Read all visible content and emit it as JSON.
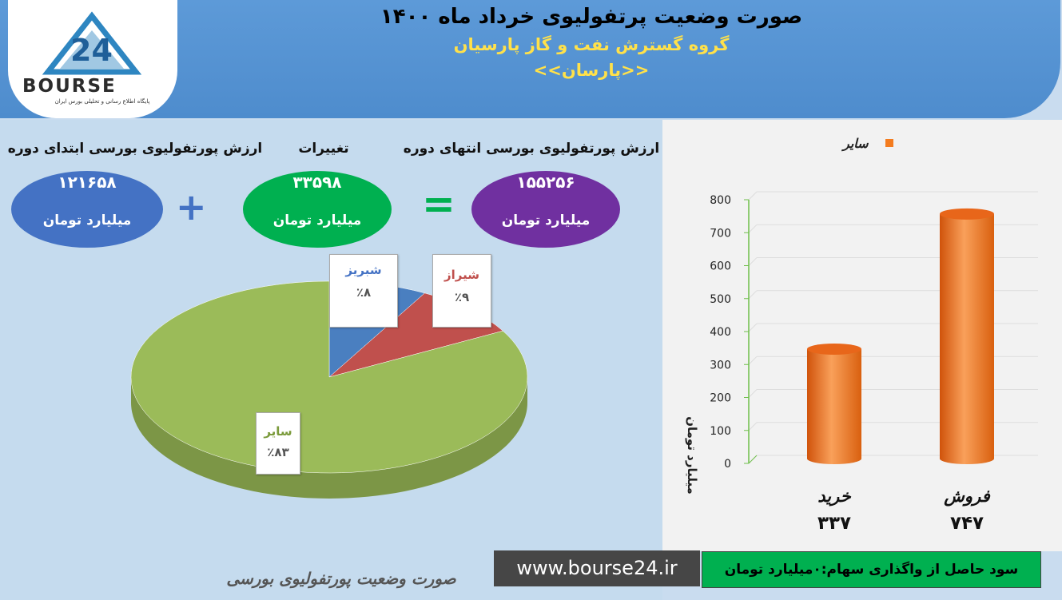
{
  "header": {
    "title": "صورت وضعیت پرتفولیوی خرداد ماه ۱۴۰۰",
    "company": "گروه گسترش نفت و گاز پارسیان",
    "symbol": "<<پارسان>>"
  },
  "logo": {
    "brand": "BOURSE",
    "tagline": "پایگاه اطلاع رسانی و تحلیلی بورس ایران"
  },
  "portfolio_summary": {
    "start_label": "ارزش پورتفولیوی بورسی ابتدای دوره",
    "start_value": "۱۲۱۶۵۸",
    "change_label": "تغییرات",
    "change_value": "۳۳۵۹۸",
    "end_label": "ارزش پورتفولیوی بورسی انتهای دوره",
    "end_value": "۱۵۵۲۵۶",
    "unit": "میلیارد تومان",
    "plus": "+",
    "equals": "="
  },
  "colors": {
    "start_oval": "#4472c4",
    "change_oval": "#00b050",
    "end_oval": "#7030a0",
    "pie_blue": "#4a7fc0",
    "pie_red": "#c0504d",
    "pie_green": "#9bbb59",
    "bar_orange": "#f47c1f"
  },
  "chart_data": [
    {
      "type": "pie",
      "slices": [
        {
          "label": "شبریز",
          "display": "٪۸",
          "value": 8,
          "label_color": "#4472c4"
        },
        {
          "label": "شیراز",
          "display": "٪۹",
          "value": 9,
          "label_color": "#c0504d"
        },
        {
          "label": "سایر",
          "display": "٪۸۳",
          "value": 83,
          "label_color": "#7a9a3a"
        }
      ]
    },
    {
      "type": "bar",
      "categories": [
        "خرید",
        "فروش"
      ],
      "series": [
        {
          "name": "سایر",
          "values": [
            337,
            747
          ]
        }
      ],
      "value_labels": [
        "۳۳۷",
        "۷۴۷"
      ],
      "ylabel": "میلیارد تومان",
      "ylim": [
        0,
        800
      ],
      "yticks": [
        "0",
        "100",
        "200",
        "300",
        "400",
        "500",
        "600",
        "700",
        "800"
      ]
    }
  ],
  "footer": {
    "profit_text": "سود حاصل از واگذاری سهام:۰میلیارد تومان",
    "url": "www.bourse24.ir",
    "caption": "صورت وضعیت پورتفولیوی بورسی"
  }
}
